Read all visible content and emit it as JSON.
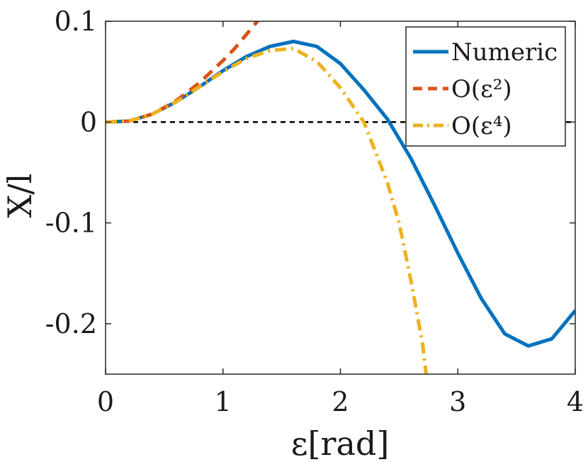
{
  "chart_data": {
    "type": "line",
    "xlabel": "ε[rad]",
    "ylabel": "X/l",
    "xlim": [
      0,
      4
    ],
    "ylim": [
      -0.25,
      0.1
    ],
    "x_ticks": [
      0,
      1,
      2,
      3,
      4
    ],
    "x_tick_labels": [
      "0",
      "1",
      "2",
      "3",
      "4"
    ],
    "y_ticks": [
      0.1,
      0,
      -0.1,
      -0.2
    ],
    "y_tick_labels": [
      "0.1",
      "0",
      "-0.1",
      "-0.2"
    ],
    "grid": false,
    "legend_position": "top-right",
    "reference_line": {
      "y": 0,
      "style": "dashed",
      "color": "#000000"
    },
    "series": [
      {
        "name": "Numeric",
        "color": "#0072BD",
        "style": "solid",
        "x": [
          0,
          0.2,
          0.4,
          0.6,
          0.8,
          1.0,
          1.2,
          1.4,
          1.6,
          1.8,
          2.0,
          2.2,
          2.4,
          2.6,
          2.8,
          3.0,
          3.2,
          3.4,
          3.6,
          3.8,
          4.0
        ],
        "y": [
          0,
          0.001,
          0.008,
          0.02,
          0.035,
          0.051,
          0.065,
          0.075,
          0.08,
          0.075,
          0.058,
          0.032,
          0.003,
          -0.036,
          -0.082,
          -0.13,
          -0.175,
          -0.21,
          -0.222,
          -0.215,
          -0.187
        ]
      },
      {
        "name": "O(ε²)",
        "color": "#D95319",
        "style": "dashed",
        "x": [
          0,
          0.2,
          0.4,
          0.6,
          0.8,
          1.0,
          1.1,
          1.2,
          1.3
        ],
        "y": [
          0,
          0.001,
          0.008,
          0.021,
          0.039,
          0.061,
          0.073,
          0.087,
          0.101
        ]
      },
      {
        "name": "O(ε⁴)",
        "color": "#EDB120",
        "style": "dashdot",
        "x": [
          0,
          0.2,
          0.4,
          0.6,
          0.8,
          1.0,
          1.2,
          1.4,
          1.6,
          1.8,
          2.0,
          2.2,
          2.4,
          2.5,
          2.6,
          2.7,
          2.73
        ],
        "y": [
          0,
          0.001,
          0.008,
          0.02,
          0.035,
          0.05,
          0.063,
          0.071,
          0.073,
          0.06,
          0.034,
          0.0,
          -0.06,
          -0.1,
          -0.157,
          -0.22,
          -0.25
        ]
      }
    ]
  }
}
